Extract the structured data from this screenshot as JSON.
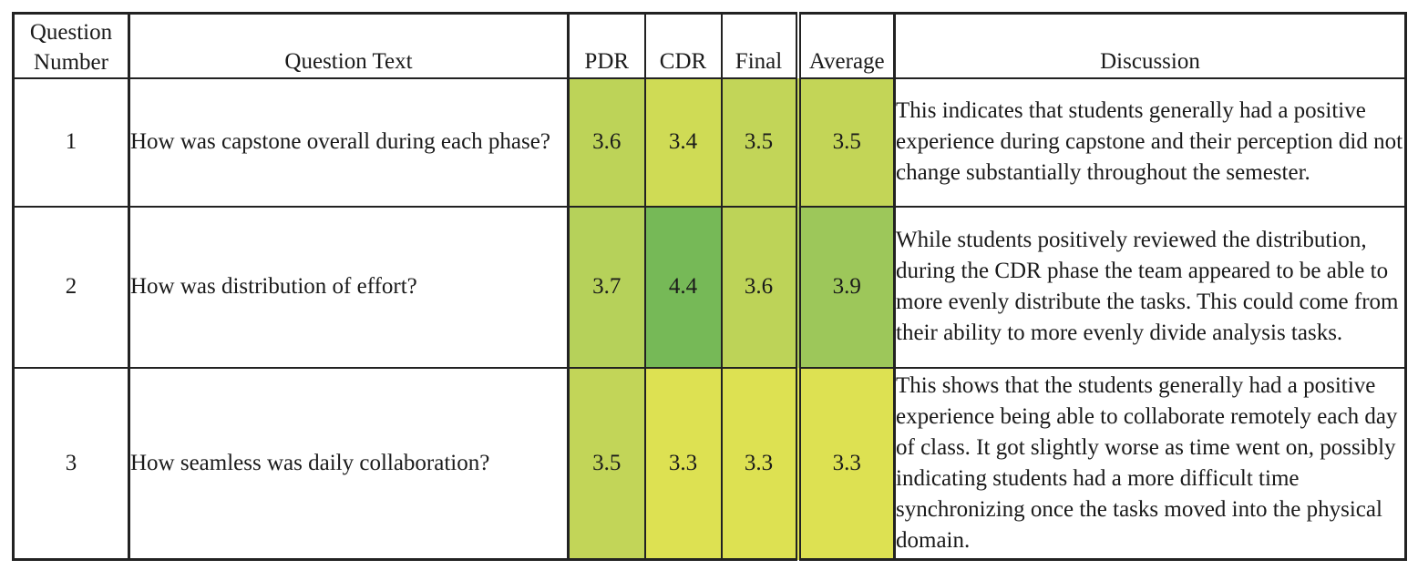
{
  "table": {
    "headers": {
      "question_number": "Question Number",
      "question_text": "Question Text",
      "pdr": "PDR",
      "cdr": "CDR",
      "final": "Final",
      "average": "Average",
      "discussion": "Discussion"
    },
    "rows": [
      {
        "number": "1",
        "text": "How was capstone overall during each phase?",
        "pdr": "3.6",
        "cdr": "3.4",
        "final": "3.5",
        "average": "3.5",
        "discussion": "This indicates that students generally had a positive experience during capstone and their perception did not change substantially throughout the semester.",
        "colors": {
          "pdr": "#bdd358",
          "cdr": "#cfdb55",
          "final": "#c2d558",
          "average": "#c3d557"
        }
      },
      {
        "number": "2",
        "text": "How was distribution of effort?",
        "pdr": "3.7",
        "cdr": "4.4",
        "final": "3.6",
        "average": "3.9",
        "discussion": "While students positively reviewed the distribution, during the CDR phase the team appeared to be able to more evenly distribute the tasks. This could come from their ability to more evenly divide analysis tasks.",
        "colors": {
          "pdr": "#b6d15a",
          "cdr": "#76b957",
          "final": "#bdd358",
          "average": "#9dc75a"
        }
      },
      {
        "number": "3",
        "text": "How seamless was daily collaboration?",
        "pdr": "3.5",
        "cdr": "3.3",
        "final": "3.3",
        "average": "3.3",
        "discussion": "This shows that the students generally had a positive experience being able to collaborate remotely each day of class. It got slightly worse as time went on, possibly indicating students had a more difficult time synchronizing once the tasks moved into the physical domain.",
        "colors": {
          "pdr": "#c2d558",
          "cdr": "#dde152",
          "final": "#dde152",
          "average": "#dde152"
        }
      }
    ]
  }
}
